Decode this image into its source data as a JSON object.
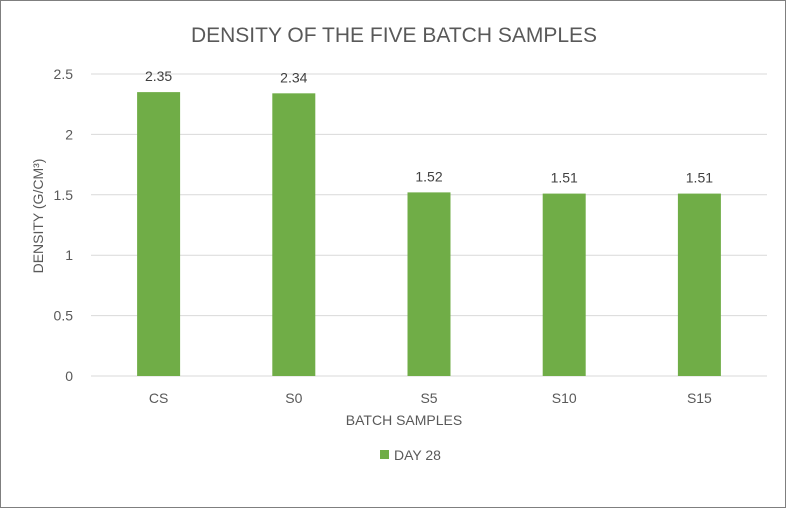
{
  "chart_data": {
    "type": "bar",
    "title": "DENSITY OF THE FIVE BATCH SAMPLES",
    "xlabel": "BATCH SAMPLES",
    "ylabel": "DENSITY (G/CM³)",
    "categories": [
      "CS",
      "S0",
      "S5",
      "S10",
      "S15"
    ],
    "series": [
      {
        "name": "DAY 28",
        "values": [
          2.35,
          2.34,
          1.52,
          1.51,
          1.51
        ],
        "data_labels": [
          "2.35",
          "2.34",
          "1.52",
          "1.51",
          "1.51"
        ],
        "color": "#70ad47"
      }
    ],
    "ylim": [
      0,
      2.5
    ],
    "yticks": [
      0,
      0.5,
      1,
      1.5,
      2,
      2.5
    ],
    "ytick_labels": [
      "0",
      "0.5",
      "1",
      "1.5",
      "2",
      "2.5"
    ],
    "grid": true,
    "legend_position": "bottom"
  }
}
